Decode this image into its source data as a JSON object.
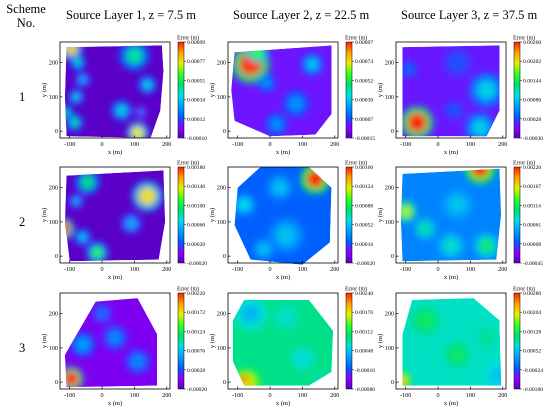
{
  "header": {
    "scheme_line1": "Scheme",
    "scheme_line2": "No."
  },
  "columns": [
    "Source Layer 1, z = 7.5 m",
    "Source Layer 2, z = 22.5 m",
    "Source Layer 3, z = 37.5 m"
  ],
  "rows": [
    "1",
    "2",
    "3"
  ],
  "colorscale": [
    "#5a00c8",
    "#8a00ff",
    "#0060ff",
    "#00a0ff",
    "#00e0e0",
    "#00e070",
    "#30ff20",
    "#e8f000",
    "#ffa000",
    "#ff2000"
  ],
  "chart_data": [
    {
      "type": "heatmap",
      "scheme": "1",
      "layer": "Source Layer 1, z = 7.5 m",
      "xlabel": "x (m)",
      "ylabel": "y (m)",
      "xticks": [
        -100,
        0,
        100,
        200
      ],
      "yticks": [
        0,
        100,
        200
      ],
      "xlim": [
        -130,
        210
      ],
      "ylim": [
        -20,
        260
      ],
      "colorbar": {
        "title": "Error (m)",
        "ticks": [
          "0.00099",
          "0.00077",
          "0.00055",
          "0.00034",
          "0.00012",
          "-0.00010"
        ],
        "min": -0.0001,
        "max": 0.00099
      },
      "boundary": [
        [
          -110,
          245
        ],
        [
          185,
          250
        ],
        [
          190,
          175
        ],
        [
          180,
          60
        ],
        [
          150,
          -20
        ],
        [
          -110,
          -15
        ],
        [
          -115,
          100
        ]
      ],
      "background": -0.0001,
      "hotspots": [
        [
          -95,
          240,
          25,
          0.0008
        ],
        [
          -75,
          200,
          18,
          0.0004
        ],
        [
          100,
          220,
          35,
          0.00045
        ],
        [
          -60,
          150,
          18,
          0.0003
        ],
        [
          140,
          135,
          22,
          0.00035
        ],
        [
          -80,
          100,
          18,
          0.00035
        ],
        [
          60,
          60,
          25,
          0.00035
        ],
        [
          -110,
          55,
          15,
          0.0005
        ],
        [
          -85,
          25,
          20,
          0.00045
        ],
        [
          110,
          -5,
          25,
          0.00075
        ],
        [
          120,
          55,
          15,
          0.0002
        ]
      ]
    },
    {
      "type": "heatmap",
      "scheme": "1",
      "layer": "Source Layer 2, z = 22.5 m",
      "xlabel": "x (m)",
      "ylabel": "y (m)",
      "xticks": [
        -100,
        0,
        100,
        200
      ],
      "yticks": [
        0,
        100,
        200
      ],
      "xlim": [
        -130,
        210
      ],
      "ylim": [
        -20,
        260
      ],
      "colorbar": {
        "title": "Error (m)",
        "ticks": [
          "0.00097",
          "0.00074",
          "0.00052",
          "0.00030",
          "0.00007",
          "-0.00015"
        ],
        "min": -0.00015,
        "max": 0.00097
      },
      "boundary": [
        [
          -110,
          230
        ],
        [
          190,
          250
        ],
        [
          190,
          50
        ],
        [
          140,
          -10
        ],
        [
          0,
          -15
        ],
        [
          -110,
          30
        ],
        [
          -120,
          120
        ]
      ],
      "background": 0.0,
      "hotspots": [
        [
          -60,
          195,
          45,
          0.00095
        ],
        [
          -40,
          230,
          25,
          0.0006
        ],
        [
          130,
          195,
          25,
          0.0003
        ],
        [
          -10,
          140,
          20,
          0.0002
        ],
        [
          80,
          80,
          30,
          0.0002
        ],
        [
          20,
          20,
          25,
          0.0002
        ]
      ]
    },
    {
      "type": "heatmap",
      "scheme": "1",
      "layer": "Source Layer 3, z = 37.5 m",
      "xlabel": "x (m)",
      "ylabel": "y (m)",
      "xticks": [
        -100,
        0,
        100,
        200
      ],
      "yticks": [
        0,
        100,
        200
      ],
      "xlim": [
        -130,
        210
      ],
      "ylim": [
        -20,
        260
      ],
      "colorbar": {
        "title": "Error (m)",
        "ticks": [
          "0.00260",
          "0.00202",
          "0.00144",
          "0.00086",
          "0.00028",
          "-0.00030"
        ],
        "min": -0.0003,
        "max": 0.0026
      },
      "boundary": [
        [
          -110,
          245
        ],
        [
          190,
          250
        ],
        [
          190,
          60
        ],
        [
          150,
          -15
        ],
        [
          -110,
          -15
        ]
      ],
      "background": 0.0001,
      "hotspots": [
        [
          -65,
          25,
          38,
          0.0026
        ],
        [
          150,
          120,
          40,
          0.0009
        ],
        [
          130,
          10,
          35,
          0.0009
        ],
        [
          -90,
          180,
          20,
          0.0004
        ],
        [
          60,
          200,
          35,
          0.0003
        ],
        [
          50,
          60,
          25,
          0.0003
        ]
      ]
    },
    {
      "type": "heatmap",
      "scheme": "2",
      "layer": "Source Layer 1, z = 7.5 m",
      "xlabel": "x (m)",
      "ylabel": "y (m)",
      "xticks": [
        -100,
        0,
        100,
        200
      ],
      "yticks": [
        0,
        100,
        200
      ],
      "xlim": [
        -130,
        210
      ],
      "ylim": [
        -20,
        260
      ],
      "colorbar": {
        "title": "Error (m)",
        "ticks": [
          "0.00180",
          "0.00140",
          "0.00100",
          "0.00060",
          "0.00020",
          "-0.00020"
        ],
        "min": -0.0002,
        "max": 0.0018
      },
      "boundary": [
        [
          -110,
          235
        ],
        [
          190,
          250
        ],
        [
          195,
          100
        ],
        [
          175,
          -10
        ],
        [
          -100,
          -15
        ],
        [
          -115,
          100
        ]
      ],
      "background": -0.0002,
      "hotspots": [
        [
          -120,
          80,
          25,
          0.0018
        ],
        [
          140,
          175,
          35,
          0.0014
        ],
        [
          -45,
          215,
          28,
          0.0009
        ],
        [
          -80,
          160,
          18,
          0.0005
        ],
        [
          90,
          95,
          25,
          0.0005
        ],
        [
          -60,
          55,
          20,
          0.0006
        ],
        [
          -15,
          10,
          25,
          0.0011
        ]
      ]
    },
    {
      "type": "heatmap",
      "scheme": "2",
      "layer": "Source Layer 2, z = 22.5 m",
      "xlabel": "x (m)",
      "ylabel": "y (m)",
      "xticks": [
        -100,
        0,
        100,
        200
      ],
      "yticks": [
        0,
        100,
        200
      ],
      "xlim": [
        -130,
        210
      ],
      "ylim": [
        -20,
        260
      ],
      "colorbar": {
        "title": "Error (m)",
        "ticks": [
          "0.00160",
          "0.00124",
          "0.00088",
          "0.00052",
          "0.00016",
          "-0.00020"
        ],
        "min": -0.0002,
        "max": 0.0016
      },
      "boundary": [
        [
          -30,
          260
        ],
        [
          120,
          260
        ],
        [
          190,
          200
        ],
        [
          185,
          40
        ],
        [
          100,
          -25
        ],
        [
          -60,
          -10
        ],
        [
          -110,
          90
        ],
        [
          -100,
          200
        ]
      ],
      "background": 0.0002,
      "hotspots": [
        [
          140,
          225,
          35,
          0.0016
        ],
        [
          -80,
          150,
          25,
          0.0006
        ],
        [
          30,
          200,
          30,
          0.0005
        ],
        [
          50,
          60,
          40,
          0.0005
        ],
        [
          -20,
          20,
          25,
          0.0005
        ]
      ]
    },
    {
      "type": "heatmap",
      "scheme": "2",
      "layer": "Source Layer 3, z = 37.5 m",
      "xlabel": "x (m)",
      "ylabel": "y (m)",
      "xticks": [
        -100,
        0,
        100,
        200
      ],
      "yticks": [
        0,
        100,
        200
      ],
      "xlim": [
        -130,
        210
      ],
      "ylim": [
        -20,
        260
      ],
      "colorbar": {
        "title": "Error (m)",
        "ticks": [
          "0.00220",
          "0.00167",
          "0.00114",
          "0.00061",
          "0.00008",
          "-0.00045"
        ],
        "min": -0.00045,
        "max": 0.0022
      },
      "boundary": [
        [
          -110,
          240
        ],
        [
          190,
          255
        ],
        [
          195,
          120
        ],
        [
          180,
          -10
        ],
        [
          -110,
          -15
        ],
        [
          -115,
          100
        ]
      ],
      "background": 0.0003,
      "hotspots": [
        [
          130,
          255,
          35,
          0.0022
        ],
        [
          -100,
          130,
          25,
          0.0015
        ],
        [
          -40,
          80,
          25,
          0.0009
        ],
        [
          40,
          30,
          30,
          0.0008
        ],
        [
          150,
          30,
          28,
          0.0011
        ],
        [
          60,
          150,
          35,
          0.0006
        ]
      ]
    },
    {
      "type": "heatmap",
      "scheme": "3",
      "layer": "Source Layer 1, z = 7.5 m",
      "xlabel": "x (m)",
      "ylabel": "y (m)",
      "xticks": [
        -100,
        0,
        100,
        200
      ],
      "yticks": [
        0,
        100,
        200
      ],
      "xlim": [
        -130,
        210
      ],
      "ylim": [
        -20,
        260
      ],
      "colorbar": {
        "title": "Error (m)",
        "ticks": [
          "0.00220",
          "0.00172",
          "0.00124",
          "0.00076",
          "0.00028",
          "-0.00020"
        ],
        "min": -0.0002,
        "max": 0.0022
      },
      "boundary": [
        [
          -20,
          235
        ],
        [
          110,
          245
        ],
        [
          170,
          140
        ],
        [
          170,
          -10
        ],
        [
          -110,
          -15
        ],
        [
          -115,
          80
        ]
      ],
      "background": 0.0,
      "hotspots": [
        [
          -95,
          10,
          28,
          0.0022
        ],
        [
          -60,
          110,
          30,
          0.0006
        ],
        [
          40,
          130,
          30,
          0.0005
        ],
        [
          110,
          60,
          30,
          0.0005
        ],
        [
          0,
          200,
          25,
          0.0004
        ]
      ]
    },
    {
      "type": "heatmap",
      "scheme": "3",
      "layer": "Source Layer 2, z = 22.5 m",
      "xlabel": "x (m)",
      "ylabel": "y (m)",
      "xticks": [
        -100,
        0,
        100,
        200
      ],
      "yticks": [
        0,
        100,
        200
      ],
      "xlim": [
        -130,
        210
      ],
      "ylim": [
        -20,
        260
      ],
      "colorbar": {
        "title": "Error (m)",
        "ticks": [
          "0.00240",
          "0.00176",
          "0.00112",
          "0.00048",
          "-0.00016",
          "-0.00080"
        ],
        "min": -0.0008,
        "max": 0.0024
      },
      "boundary": [
        [
          -80,
          240
        ],
        [
          120,
          240
        ],
        [
          195,
          150
        ],
        [
          190,
          30
        ],
        [
          120,
          -10
        ],
        [
          -80,
          -10
        ],
        [
          -115,
          60
        ],
        [
          -115,
          180
        ]
      ],
      "background": 0.0009,
      "hotspots": [
        [
          -70,
          0,
          30,
          0.0018
        ],
        [
          -80,
          10,
          15,
          0.0024
        ],
        [
          160,
          0,
          25,
          0.0007
        ],
        [
          -60,
          200,
          40,
          0.0004
        ],
        [
          100,
          70,
          30,
          0.0006
        ],
        [
          50,
          190,
          35,
          0.0007
        ]
      ]
    },
    {
      "type": "heatmap",
      "scheme": "3",
      "layer": "Source Layer 3, z = 37.5 m",
      "xlabel": "x (m)",
      "ylabel": "y (m)",
      "xticks": [
        -100,
        0,
        100,
        200
      ],
      "yticks": [
        0,
        100,
        200
      ],
      "xlim": [
        -130,
        210
      ],
      "ylim": [
        -20,
        260
      ],
      "colorbar": {
        "title": "Error (m)",
        "ticks": [
          "0.00280",
          "0.00204",
          "0.00128",
          "0.00052",
          "-0.00024",
          "-0.00100"
        ],
        "min": -0.001,
        "max": 0.0028
      },
      "boundary": [
        [
          -80,
          240
        ],
        [
          110,
          245
        ],
        [
          190,
          180
        ],
        [
          195,
          -10
        ],
        [
          -110,
          -10
        ],
        [
          -110,
          140
        ]
      ],
      "background": 0.0008,
      "hotspots": [
        [
          190,
          20,
          35,
          0.0005
        ],
        [
          -110,
          5,
          20,
          0.0022
        ],
        [
          60,
          80,
          30,
          0.0012
        ],
        [
          -40,
          180,
          35,
          0.0012
        ],
        [
          150,
          130,
          25,
          0.001
        ]
      ]
    }
  ]
}
